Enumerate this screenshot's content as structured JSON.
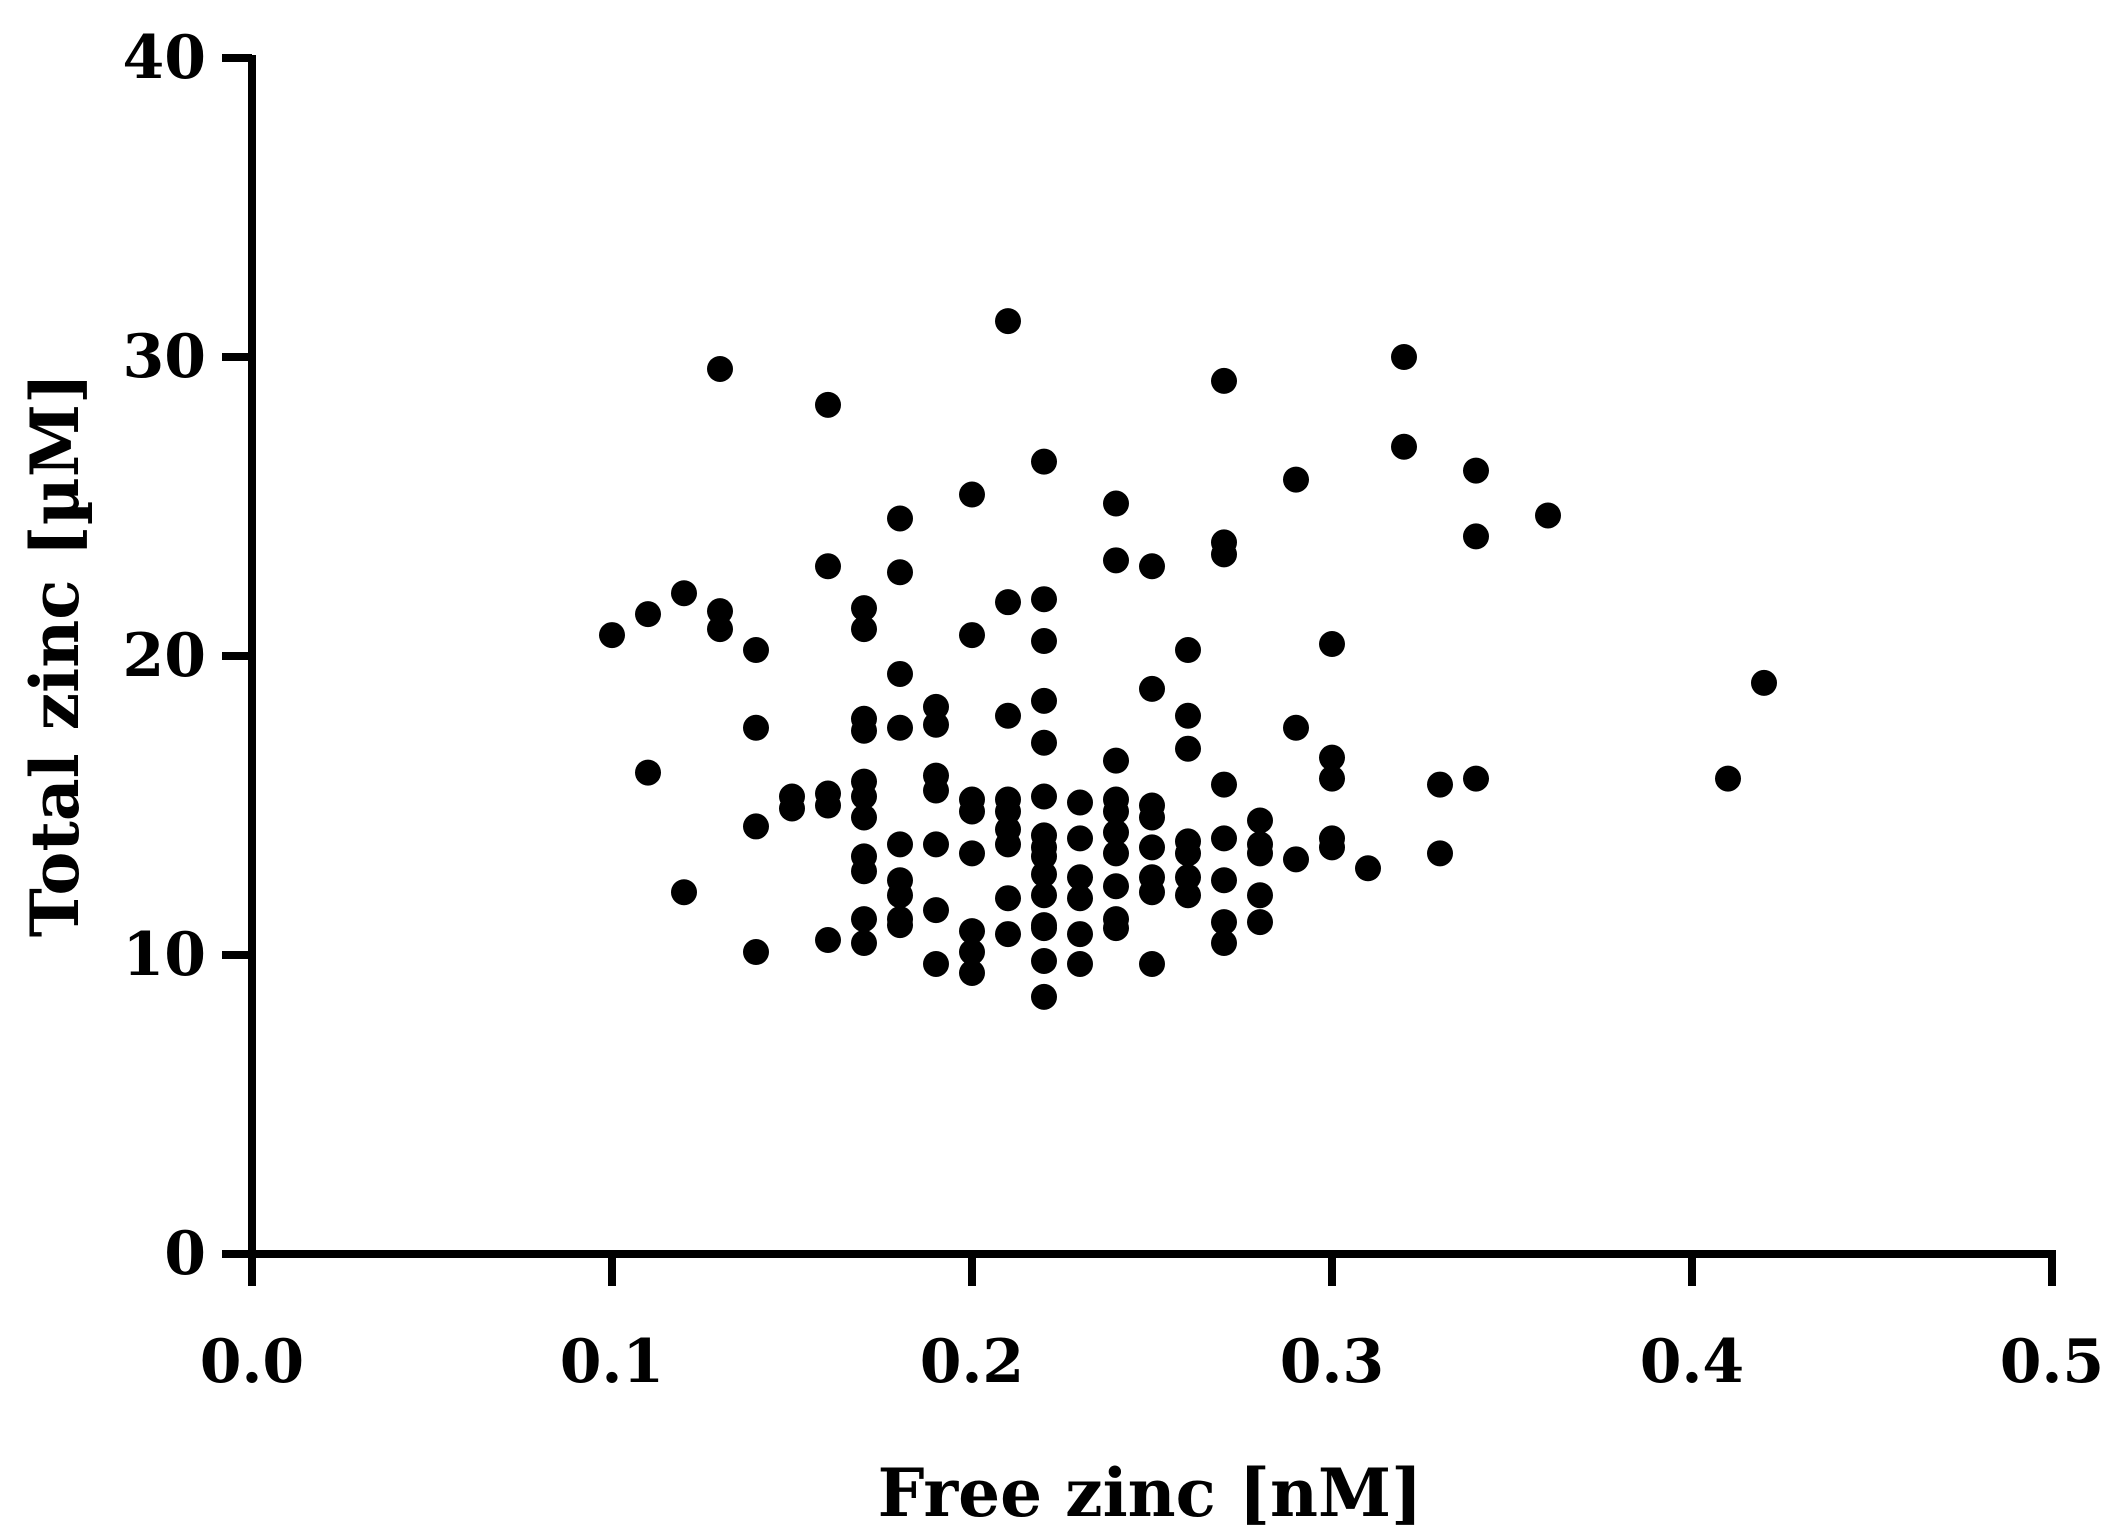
{
  "chart_data": {
    "type": "scatter",
    "xlabel": "Free zinc [nM]",
    "ylabel": "Total zinc [µM]",
    "xlim": [
      0.0,
      0.5
    ],
    "ylim": [
      0,
      40
    ],
    "xticks": [
      "0.0",
      "0.1",
      "0.2",
      "0.3",
      "0.4",
      "0.5"
    ],
    "yticks": [
      "0",
      "10",
      "20",
      "30",
      "40"
    ],
    "grid": false,
    "legend": "none",
    "marker_color": "#000000",
    "points": [
      [
        0.1,
        20.7
      ],
      [
        0.11,
        21.4
      ],
      [
        0.11,
        16.1
      ],
      [
        0.12,
        22.1
      ],
      [
        0.12,
        12.1
      ],
      [
        0.13,
        29.6
      ],
      [
        0.13,
        21.5
      ],
      [
        0.13,
        20.9
      ],
      [
        0.14,
        20.2
      ],
      [
        0.14,
        17.6
      ],
      [
        0.14,
        14.3
      ],
      [
        0.14,
        10.1
      ],
      [
        0.15,
        15.3
      ],
      [
        0.15,
        14.9
      ],
      [
        0.16,
        28.4
      ],
      [
        0.16,
        23.0
      ],
      [
        0.16,
        15.4
      ],
      [
        0.16,
        15.0
      ],
      [
        0.16,
        10.5
      ],
      [
        0.17,
        21.6
      ],
      [
        0.17,
        20.9
      ],
      [
        0.17,
        17.9
      ],
      [
        0.17,
        17.5
      ],
      [
        0.17,
        15.8
      ],
      [
        0.17,
        15.3
      ],
      [
        0.17,
        14.6
      ],
      [
        0.17,
        13.3
      ],
      [
        0.17,
        12.8
      ],
      [
        0.17,
        11.2
      ],
      [
        0.17,
        10.4
      ],
      [
        0.18,
        24.6
      ],
      [
        0.18,
        22.8
      ],
      [
        0.18,
        19.4
      ],
      [
        0.18,
        17.6
      ],
      [
        0.18,
        13.7
      ],
      [
        0.18,
        12.5
      ],
      [
        0.18,
        12.0
      ],
      [
        0.18,
        11.2
      ],
      [
        0.18,
        11.0
      ],
      [
        0.19,
        18.3
      ],
      [
        0.19,
        17.7
      ],
      [
        0.19,
        16.0
      ],
      [
        0.19,
        15.5
      ],
      [
        0.19,
        13.7
      ],
      [
        0.19,
        11.5
      ],
      [
        0.19,
        9.7
      ],
      [
        0.2,
        25.4
      ],
      [
        0.2,
        20.7
      ],
      [
        0.2,
        15.2
      ],
      [
        0.2,
        14.8
      ],
      [
        0.2,
        13.4
      ],
      [
        0.2,
        10.8
      ],
      [
        0.2,
        10.1
      ],
      [
        0.2,
        9.4
      ],
      [
        0.21,
        31.2
      ],
      [
        0.21,
        21.8
      ],
      [
        0.21,
        18.0
      ],
      [
        0.21,
        15.2
      ],
      [
        0.21,
        14.8
      ],
      [
        0.21,
        14.2
      ],
      [
        0.21,
        13.7
      ],
      [
        0.21,
        11.9
      ],
      [
        0.21,
        10.7
      ],
      [
        0.22,
        26.5
      ],
      [
        0.22,
        21.9
      ],
      [
        0.22,
        20.5
      ],
      [
        0.22,
        18.5
      ],
      [
        0.22,
        17.1
      ],
      [
        0.22,
        15.3
      ],
      [
        0.22,
        14.0
      ],
      [
        0.22,
        13.6
      ],
      [
        0.22,
        13.3
      ],
      [
        0.22,
        12.7
      ],
      [
        0.22,
        12.0
      ],
      [
        0.22,
        11.0
      ],
      [
        0.22,
        10.9
      ],
      [
        0.22,
        9.8
      ],
      [
        0.22,
        8.6
      ],
      [
        0.23,
        15.1
      ],
      [
        0.23,
        13.9
      ],
      [
        0.23,
        12.6
      ],
      [
        0.23,
        11.9
      ],
      [
        0.23,
        10.7
      ],
      [
        0.23,
        9.7
      ],
      [
        0.24,
        25.1
      ],
      [
        0.24,
        23.2
      ],
      [
        0.24,
        16.5
      ],
      [
        0.24,
        15.2
      ],
      [
        0.24,
        14.8
      ],
      [
        0.24,
        14.1
      ],
      [
        0.24,
        13.4
      ],
      [
        0.24,
        12.3
      ],
      [
        0.24,
        11.2
      ],
      [
        0.24,
        10.9
      ],
      [
        0.25,
        23.0
      ],
      [
        0.25,
        18.9
      ],
      [
        0.25,
        15.0
      ],
      [
        0.25,
        14.6
      ],
      [
        0.25,
        13.6
      ],
      [
        0.25,
        12.6
      ],
      [
        0.25,
        12.1
      ],
      [
        0.25,
        9.7
      ],
      [
        0.26,
        20.2
      ],
      [
        0.26,
        18.0
      ],
      [
        0.26,
        16.9
      ],
      [
        0.26,
        13.8
      ],
      [
        0.26,
        13.4
      ],
      [
        0.26,
        12.6
      ],
      [
        0.26,
        12.0
      ],
      [
        0.27,
        29.2
      ],
      [
        0.27,
        23.8
      ],
      [
        0.27,
        23.4
      ],
      [
        0.27,
        15.7
      ],
      [
        0.27,
        13.9
      ],
      [
        0.27,
        12.5
      ],
      [
        0.27,
        11.1
      ],
      [
        0.27,
        10.4
      ],
      [
        0.28,
        14.5
      ],
      [
        0.28,
        13.7
      ],
      [
        0.28,
        13.4
      ],
      [
        0.28,
        12.0
      ],
      [
        0.28,
        11.1
      ],
      [
        0.29,
        25.9
      ],
      [
        0.29,
        17.6
      ],
      [
        0.29,
        13.2
      ],
      [
        0.3,
        20.4
      ],
      [
        0.3,
        16.6
      ],
      [
        0.3,
        15.9
      ],
      [
        0.3,
        13.9
      ],
      [
        0.3,
        13.6
      ],
      [
        0.31,
        12.9
      ],
      [
        0.32,
        30.0
      ],
      [
        0.32,
        27.0
      ],
      [
        0.33,
        15.7
      ],
      [
        0.33,
        13.4
      ],
      [
        0.34,
        26.2
      ],
      [
        0.34,
        24.0
      ],
      [
        0.34,
        15.9
      ],
      [
        0.36,
        24.7
      ],
      [
        0.41,
        15.9
      ],
      [
        0.42,
        19.1
      ]
    ]
  }
}
